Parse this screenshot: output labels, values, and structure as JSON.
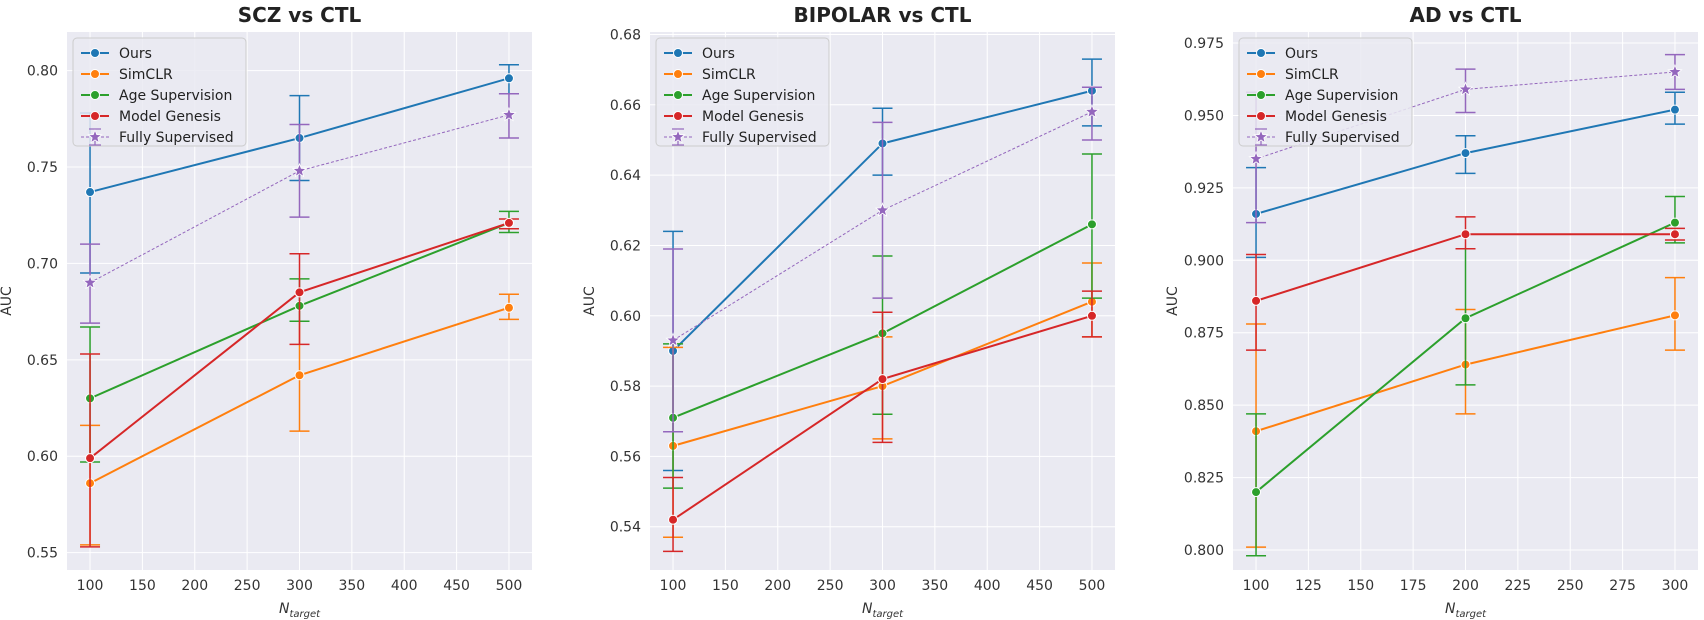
{
  "chart_data": [
    {
      "type": "line",
      "title": "SCZ vs CTL",
      "xlabel": "N",
      "xlabel_sub": "target",
      "ylabel": "AUC",
      "x": [
        100,
        300,
        500
      ],
      "xlim": [
        78,
        522
      ],
      "ylim": [
        0.541,
        0.82
      ],
      "xticks": [
        100,
        150,
        200,
        250,
        300,
        350,
        400,
        450,
        500
      ],
      "xtick_labels": [
        "100",
        "150",
        "200",
        "250",
        "300",
        "350",
        "400",
        "450",
        "500"
      ],
      "yticks": [
        0.55,
        0.6,
        0.65,
        0.7,
        0.75,
        0.8
      ],
      "ytick_labels": [
        "0.55",
        "0.60",
        "0.65",
        "0.70",
        "0.75",
        "0.80"
      ],
      "legend_position": "top-left",
      "series": [
        {
          "name": "Ours",
          "values": [
            0.737,
            0.765,
            0.796
          ],
          "err_low": [
            0.695,
            0.743,
            0.788
          ],
          "err_high": [
            0.778,
            0.787,
            0.803
          ]
        },
        {
          "name": "SimCLR",
          "values": [
            0.586,
            0.642,
            0.677
          ],
          "err_low": [
            0.554,
            0.613,
            0.671
          ],
          "err_high": [
            0.616,
            0.67,
            0.684
          ]
        },
        {
          "name": "Age Supervision",
          "values": [
            0.63,
            0.678,
            0.721
          ],
          "err_low": [
            0.597,
            0.67,
            0.716
          ],
          "err_high": [
            0.667,
            0.692,
            0.727
          ]
        },
        {
          "name": "Model Genesis",
          "values": [
            0.599,
            0.685,
            0.721
          ],
          "err_low": [
            0.553,
            0.658,
            0.718
          ],
          "err_high": [
            0.653,
            0.705,
            0.723
          ]
        },
        {
          "name": "Fully Supervised",
          "values": [
            0.69,
            0.748,
            0.777
          ],
          "err_low": [
            0.669,
            0.724,
            0.765
          ],
          "err_high": [
            0.71,
            0.772,
            0.788
          ]
        }
      ]
    },
    {
      "type": "line",
      "title": "BIPOLAR vs CTL",
      "xlabel": "N",
      "xlabel_sub": "target",
      "ylabel": "AUC",
      "x": [
        100,
        300,
        500
      ],
      "xlim": [
        78,
        522
      ],
      "ylim": [
        0.5277,
        0.6807
      ],
      "xticks": [
        100,
        150,
        200,
        250,
        300,
        350,
        400,
        450,
        500
      ],
      "xtick_labels": [
        "100",
        "150",
        "200",
        "250",
        "300",
        "350",
        "400",
        "450",
        "500"
      ],
      "yticks": [
        0.54,
        0.56,
        0.58,
        0.6,
        0.62,
        0.64,
        0.66,
        0.68
      ],
      "ytick_labels": [
        "0.54",
        "0.56",
        "0.58",
        "0.60",
        "0.62",
        "0.64",
        "0.66",
        "0.68"
      ],
      "legend_position": "top-left",
      "series": [
        {
          "name": "Ours",
          "values": [
            0.59,
            0.649,
            0.664
          ],
          "err_low": [
            0.556,
            0.64,
            0.654
          ],
          "err_high": [
            0.624,
            0.659,
            0.673
          ]
        },
        {
          "name": "SimCLR",
          "values": [
            0.563,
            0.58,
            0.604
          ],
          "err_low": [
            0.537,
            0.565,
            0.594
          ],
          "err_high": [
            0.591,
            0.594,
            0.615
          ]
        },
        {
          "name": "Age Supervision",
          "values": [
            0.571,
            0.595,
            0.626
          ],
          "err_low": [
            0.551,
            0.572,
            0.605
          ],
          "err_high": [
            0.592,
            0.617,
            0.646
          ]
        },
        {
          "name": "Model Genesis",
          "values": [
            0.542,
            0.582,
            0.6
          ],
          "err_low": [
            0.533,
            0.564,
            0.594
          ],
          "err_high": [
            0.554,
            0.601,
            0.607
          ]
        },
        {
          "name": "Fully Supervised",
          "values": [
            0.593,
            0.63,
            0.658
          ],
          "err_low": [
            0.567,
            0.605,
            0.65
          ],
          "err_high": [
            0.619,
            0.655,
            0.665
          ]
        }
      ]
    },
    {
      "type": "line",
      "title": "AD vs CTL",
      "xlabel": "N",
      "xlabel_sub": "target",
      "ylabel": "AUC",
      "x": [
        100,
        200,
        300
      ],
      "xlim": [
        89,
        311
      ],
      "ylim": [
        0.7931,
        0.9788
      ],
      "xticks": [
        100,
        125,
        150,
        175,
        200,
        225,
        250,
        275,
        300
      ],
      "xtick_labels": [
        "100",
        "125",
        "150",
        "175",
        "200",
        "225",
        "250",
        "275",
        "300"
      ],
      "yticks": [
        0.8,
        0.825,
        0.85,
        0.875,
        0.9,
        0.925,
        0.95,
        0.975
      ],
      "ytick_labels": [
        "0.800",
        "0.825",
        "0.850",
        "0.875",
        "0.900",
        "0.925",
        "0.950",
        "0.975"
      ],
      "legend_position": "top-left",
      "series": [
        {
          "name": "Ours",
          "values": [
            0.916,
            0.937,
            0.952
          ],
          "err_low": [
            0.901,
            0.93,
            0.947
          ],
          "err_high": [
            0.932,
            0.943,
            0.958
          ]
        },
        {
          "name": "SimCLR",
          "values": [
            0.841,
            0.864,
            0.881
          ],
          "err_low": [
            0.801,
            0.847,
            0.869
          ],
          "err_high": [
            0.878,
            0.883,
            0.894
          ]
        },
        {
          "name": "Age Supervision",
          "values": [
            0.82,
            0.88,
            0.913
          ],
          "err_low": [
            0.798,
            0.857,
            0.906
          ],
          "err_high": [
            0.847,
            0.904,
            0.922
          ]
        },
        {
          "name": "Model Genesis",
          "values": [
            0.886,
            0.909,
            0.909
          ],
          "err_low": [
            0.869,
            0.904,
            0.907
          ],
          "err_high": [
            0.902,
            0.915,
            0.911
          ]
        },
        {
          "name": "Fully Supervised",
          "values": [
            0.935,
            0.959,
            0.965
          ],
          "err_low": [
            0.913,
            0.951,
            0.959
          ],
          "err_high": [
            0.958,
            0.966,
            0.971
          ]
        }
      ]
    }
  ],
  "colors": {
    "Ours": "#1f77b4",
    "SimCLR": "#ff7f0e",
    "Age Supervision": "#2ca02c",
    "Model Genesis": "#d62728",
    "Fully Supervised": "#9467bd",
    "plot_bg": "#eaeaf2",
    "grid": "#ffffff"
  }
}
